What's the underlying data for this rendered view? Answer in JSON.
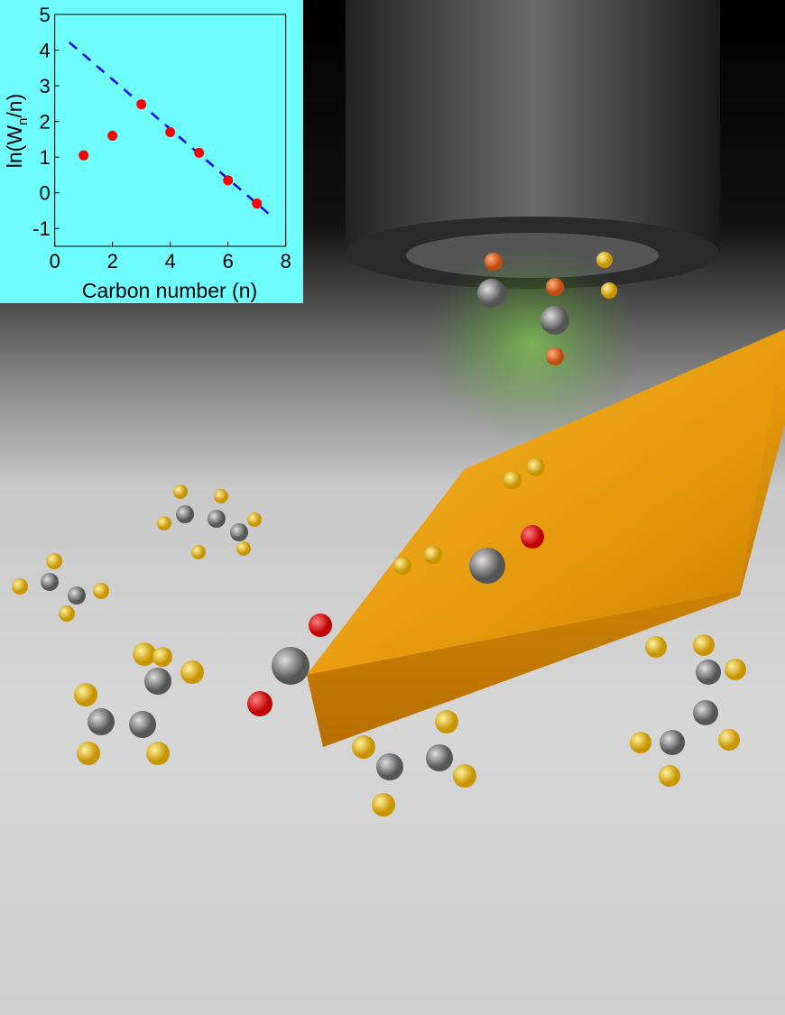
{
  "chart_data": {
    "type": "scatter",
    "xlabel": "Carbon number (n)",
    "ylabel_parts": {
      "prefix": "ln(W",
      "subscript": "n",
      "suffix": "/n)"
    },
    "xlim": [
      0,
      8
    ],
    "ylim": [
      -1.5,
      5
    ],
    "xticks": [
      "0",
      "2",
      "4",
      "6",
      "8"
    ],
    "yticks": [
      "-1",
      "0",
      "1",
      "2",
      "3",
      "4",
      "5"
    ],
    "grid": false,
    "background_color": "#6ffefe",
    "points": {
      "color": "#ff0000",
      "x": [
        1,
        2,
        3,
        4,
        5,
        6,
        7
      ],
      "y": [
        1.05,
        1.6,
        2.48,
        1.7,
        1.12,
        0.35,
        -0.3
      ]
    },
    "fit_line": {
      "style": "dashed",
      "color": "#0000ff",
      "x": [
        0.5,
        7.5
      ],
      "y": [
        4.22,
        -0.65
      ]
    }
  }
}
